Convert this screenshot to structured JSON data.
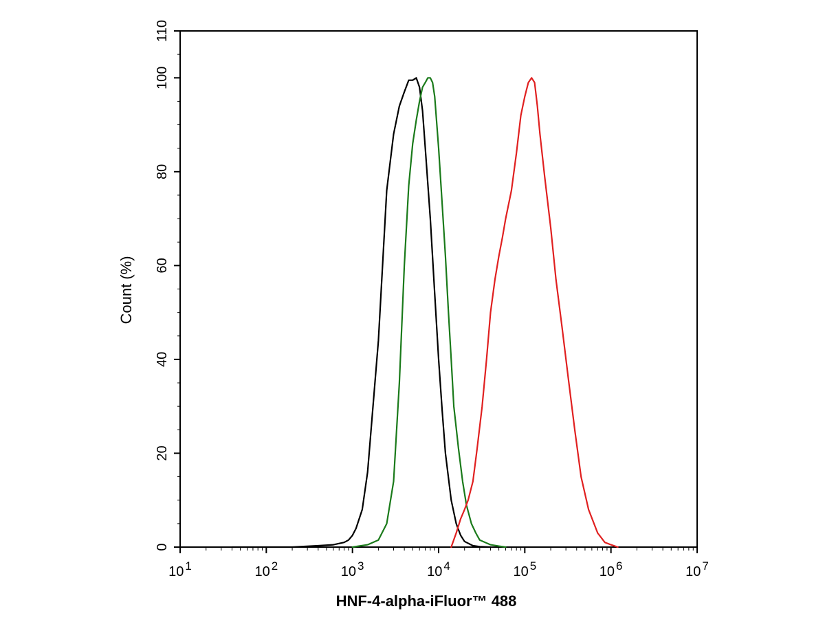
{
  "chart_data": {
    "type": "line",
    "title": "",
    "xlabel": "HNF-4-alpha-iFluor™ 488",
    "ylabel": "Count  (%)",
    "x_scale": "log",
    "xlim": [
      10,
      10000000
    ],
    "ylim": [
      0,
      110
    ],
    "grid": false,
    "x_tick_labels": [
      {
        "base": "10",
        "exp": "1"
      },
      {
        "base": "10",
        "exp": "2"
      },
      {
        "base": "10",
        "exp": "3"
      },
      {
        "base": "10",
        "exp": "4"
      },
      {
        "base": "10",
        "exp": "5"
      },
      {
        "base": "10",
        "exp": "6"
      },
      {
        "base": "10",
        "exp": "7"
      }
    ],
    "y_ticks": [
      0,
      20,
      40,
      60,
      80,
      100,
      110
    ],
    "series": [
      {
        "color": "#000000",
        "x": [
          40,
          100,
          200,
          400,
          600,
          800,
          900,
          1000,
          1100,
          1300,
          1500,
          2000,
          2500,
          3000,
          3500,
          4000,
          4500,
          5000,
          5500,
          6000,
          6500,
          7000,
          8000,
          9000,
          10000,
          11000,
          12000,
          14000,
          16000,
          18000,
          20000,
          25000,
          30000,
          40000
        ],
        "y": [
          0,
          0,
          0,
          0.3,
          0.5,
          1,
          1.5,
          2.5,
          4,
          8,
          16,
          44,
          76,
          88,
          94,
          97,
          99.5,
          99.5,
          100,
          98,
          93,
          85,
          70,
          54,
          40,
          29,
          20,
          10,
          5,
          2.5,
          1.2,
          0.3,
          0.1,
          0
        ]
      },
      {
        "color": "#1a7a1a",
        "x": [
          1000,
          1500,
          2000,
          2500,
          3000,
          3500,
          4000,
          4500,
          5000,
          5500,
          6000,
          6500,
          7000,
          7500,
          8000,
          8500,
          9000,
          10000,
          11000,
          12000,
          13000,
          14000,
          15000,
          17000,
          19000,
          21000,
          24000,
          27000,
          30000,
          40000,
          50000,
          60000
        ],
        "y": [
          0,
          0.5,
          1.5,
          5,
          14,
          35,
          60,
          77,
          86,
          91,
          95,
          98,
          99,
          100,
          100,
          99,
          96,
          85,
          73,
          62,
          50,
          40,
          30,
          21,
          14,
          9,
          5,
          3,
          1.5,
          0.5,
          0.2,
          0
        ]
      },
      {
        "color": "#e02020",
        "x": [
          14000,
          16000,
          18000,
          20000,
          22000,
          25000,
          28000,
          32000,
          36000,
          40000,
          45000,
          50000,
          55000,
          60000,
          70000,
          80000,
          90000,
          100000,
          110000,
          120000,
          130000,
          140000,
          150000,
          170000,
          200000,
          230000,
          270000,
          320000,
          380000,
          450000,
          550000,
          700000,
          850000,
          1000000,
          1200000
        ],
        "y": [
          0,
          3,
          6,
          8,
          10,
          14,
          21,
          30,
          40,
          50,
          57,
          62,
          66,
          70,
          76,
          84,
          92,
          96,
          99,
          100,
          99,
          94,
          88,
          79,
          68,
          57,
          47,
          36,
          25,
          15,
          8,
          3,
          1,
          0.5,
          0
        ]
      }
    ]
  }
}
